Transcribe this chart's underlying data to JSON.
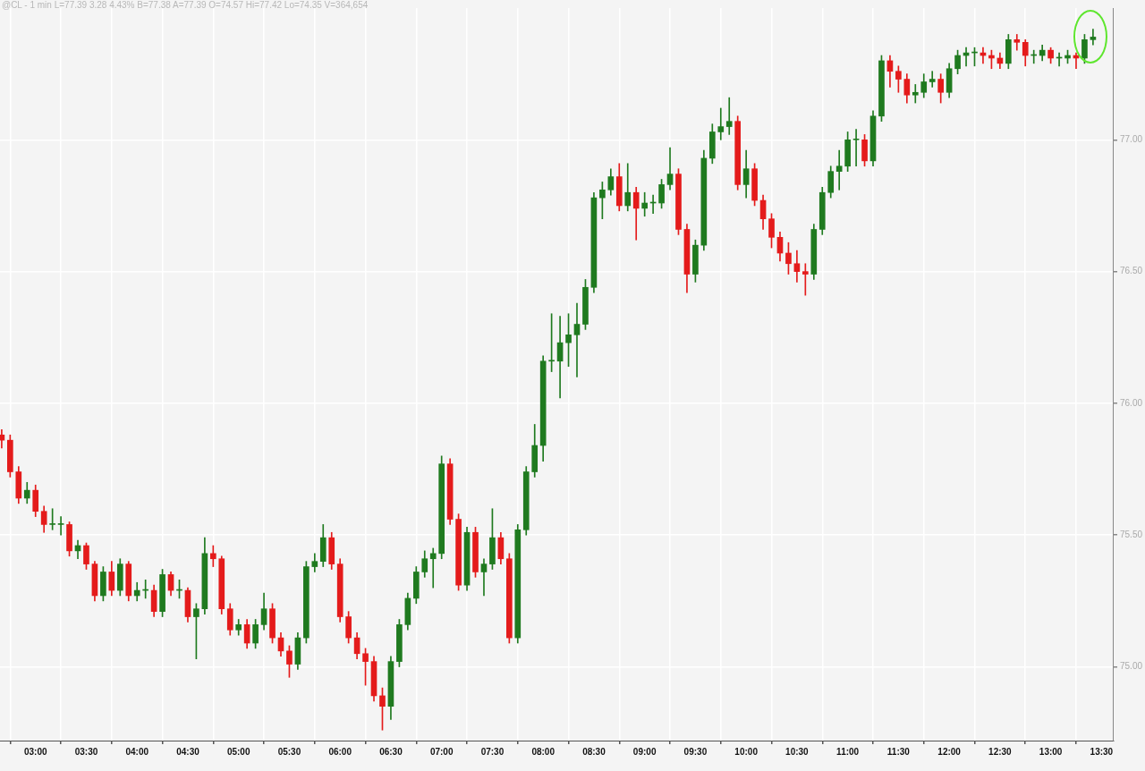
{
  "chart_data": {
    "type": "candlestick",
    "title": "@CL - 1 min L=77.39 3.28 4.43% B=77.38 A=77.39 O=74.57 Hi=77.42 Lo=74.35 V=364,654",
    "x": [
      2.6667,
      2.75,
      2.8333,
      2.9167,
      3,
      3.0833,
      3.1667,
      3.25,
      3.3333,
      3.4167,
      3.5,
      3.5833,
      3.6667,
      3.75,
      3.8333,
      3.9167,
      4,
      4.0833,
      4.1667,
      4.25,
      4.3333,
      4.4167,
      4.5,
      4.5833,
      4.6667,
      4.75,
      4.8333,
      4.9167,
      5,
      5.0833,
      5.1667,
      5.25,
      5.3333,
      5.4167,
      5.5,
      5.5833,
      5.6667,
      5.75,
      5.8333,
      5.9167,
      6,
      6.0833,
      6.1667,
      6.25,
      6.3333,
      6.4167,
      6.5,
      6.5833,
      6.6667,
      6.75,
      6.8333,
      6.9167,
      7,
      7.0833,
      7.1667,
      7.25,
      7.3333,
      7.4167,
      7.5,
      7.5833,
      7.6667,
      7.75,
      7.8333,
      7.9167,
      8,
      8.0833,
      8.1667,
      8.25,
      8.3333,
      8.4167,
      8.5,
      8.5833,
      8.6667,
      8.75,
      8.8333,
      8.9167,
      9,
      9.0833,
      9.1667,
      9.25,
      9.3333,
      9.4167,
      9.5,
      9.5833,
      9.6667,
      9.75,
      9.8333,
      9.9167,
      10,
      10.0833,
      10.1667,
      10.25,
      10.3333,
      10.4167,
      10.5,
      10.5833,
      10.6667,
      10.75,
      10.8333,
      10.9167,
      11,
      11.0833,
      11.1667,
      11.25,
      11.3333,
      11.4167,
      11.5,
      11.5833,
      11.6667,
      11.75,
      11.8333,
      11.9167,
      12,
      12.0833,
      12.1667,
      12.25,
      12.3333,
      12.4167,
      12.5,
      12.5833,
      12.6667,
      12.75,
      12.8333,
      12.9167,
      13,
      13.0833,
      13.1667,
      13.25,
      13.3333,
      13.4167
    ],
    "ohlc": [
      [
        75.88,
        75.9,
        75.83,
        75.86
      ],
      [
        75.86,
        75.88,
        75.72,
        75.74
      ],
      [
        75.74,
        75.76,
        75.62,
        75.64
      ],
      [
        75.64,
        75.7,
        75.62,
        75.67
      ],
      [
        75.67,
        75.69,
        75.57,
        75.59
      ],
      [
        75.59,
        75.61,
        75.51,
        75.54
      ],
      [
        75.54,
        75.6,
        75.52,
        75.54
      ],
      [
        75.54,
        75.57,
        75.5,
        75.54
      ],
      [
        75.54,
        75.55,
        75.42,
        75.44
      ],
      [
        75.44,
        75.48,
        75.41,
        75.46
      ],
      [
        75.46,
        75.47,
        75.37,
        75.39
      ],
      [
        75.39,
        75.4,
        75.25,
        75.27
      ],
      [
        75.27,
        75.38,
        75.25,
        75.36
      ],
      [
        75.36,
        75.4,
        75.27,
        75.29
      ],
      [
        75.29,
        75.41,
        75.27,
        75.39
      ],
      [
        75.39,
        75.4,
        75.25,
        75.27
      ],
      [
        75.27,
        75.32,
        75.25,
        75.29
      ],
      [
        75.29,
        75.33,
        75.26,
        75.29
      ],
      [
        75.29,
        75.31,
        75.19,
        75.21
      ],
      [
        75.21,
        75.37,
        75.19,
        75.35
      ],
      [
        75.35,
        75.36,
        75.27,
        75.29
      ],
      [
        75.29,
        75.33,
        75.26,
        75.29
      ],
      [
        75.29,
        75.3,
        75.17,
        75.19
      ],
      [
        75.19,
        75.24,
        75.03,
        75.22
      ],
      [
        75.22,
        75.49,
        75.2,
        75.43
      ],
      [
        75.43,
        75.46,
        75.38,
        75.41
      ],
      [
        75.41,
        75.42,
        75.2,
        75.22
      ],
      [
        75.22,
        75.24,
        75.12,
        75.14
      ],
      [
        75.14,
        75.18,
        75.12,
        75.16
      ],
      [
        75.16,
        75.18,
        75.07,
        75.09
      ],
      [
        75.09,
        75.18,
        75.07,
        75.16
      ],
      [
        75.16,
        75.28,
        75.14,
        75.22
      ],
      [
        75.22,
        75.24,
        75.09,
        75.11
      ],
      [
        75.11,
        75.13,
        75.04,
        75.06
      ],
      [
        75.06,
        75.08,
        74.96,
        75.01
      ],
      [
        75.01,
        75.13,
        74.99,
        75.11
      ],
      [
        75.11,
        75.4,
        75.09,
        75.38
      ],
      [
        75.38,
        75.43,
        75.36,
        75.4
      ],
      [
        75.4,
        75.54,
        75.38,
        75.49
      ],
      [
        75.49,
        75.51,
        75.37,
        75.39
      ],
      [
        75.39,
        75.41,
        75.17,
        75.19
      ],
      [
        75.19,
        75.21,
        75.09,
        75.11
      ],
      [
        75.11,
        75.13,
        75.03,
        75.05
      ],
      [
        75.05,
        75.07,
        74.93,
        75.02
      ],
      [
        75.02,
        75.04,
        74.87,
        74.89
      ],
      [
        74.89,
        74.92,
        74.76,
        74.85
      ],
      [
        74.85,
        75.04,
        74.8,
        75.02
      ],
      [
        75.02,
        75.18,
        75.0,
        75.16
      ],
      [
        75.16,
        75.28,
        75.14,
        75.26
      ],
      [
        75.26,
        75.38,
        75.24,
        75.36
      ],
      [
        75.36,
        75.44,
        75.34,
        75.41
      ],
      [
        75.41,
        75.45,
        75.3,
        75.43
      ],
      [
        75.43,
        75.8,
        75.41,
        75.77
      ],
      [
        75.77,
        75.79,
        75.54,
        75.56
      ],
      [
        75.56,
        75.58,
        75.29,
        75.31
      ],
      [
        75.31,
        75.53,
        75.29,
        75.51
      ],
      [
        75.51,
        75.53,
        75.34,
        75.36
      ],
      [
        75.36,
        75.41,
        75.27,
        75.39
      ],
      [
        75.39,
        75.6,
        75.37,
        75.49
      ],
      [
        75.49,
        75.51,
        75.39,
        75.41
      ],
      [
        75.41,
        75.43,
        75.09,
        75.11
      ],
      [
        75.11,
        75.54,
        75.09,
        75.52
      ],
      [
        75.52,
        75.76,
        75.5,
        75.74
      ],
      [
        75.74,
        75.92,
        75.72,
        75.84
      ],
      [
        75.84,
        76.18,
        75.78,
        76.16
      ],
      [
        76.16,
        76.34,
        76.12,
        76.16
      ],
      [
        76.16,
        76.33,
        76.02,
        76.23
      ],
      [
        76.23,
        76.34,
        76.14,
        76.26
      ],
      [
        76.26,
        76.38,
        76.1,
        76.3
      ],
      [
        76.3,
        76.47,
        76.28,
        76.44
      ],
      [
        76.44,
        76.8,
        76.42,
        76.78
      ],
      [
        76.78,
        76.84,
        76.7,
        76.81
      ],
      [
        76.81,
        76.89,
        76.79,
        76.86
      ],
      [
        76.86,
        76.91,
        76.73,
        76.75
      ],
      [
        76.75,
        76.91,
        76.73,
        76.8
      ],
      [
        76.8,
        76.82,
        76.62,
        76.74
      ],
      [
        76.74,
        76.8,
        76.71,
        76.76
      ],
      [
        76.76,
        76.79,
        76.72,
        76.76
      ],
      [
        76.76,
        76.85,
        76.74,
        76.83
      ],
      [
        76.83,
        76.97,
        76.81,
        76.87
      ],
      [
        76.87,
        76.89,
        76.64,
        76.66
      ],
      [
        76.66,
        76.68,
        76.42,
        76.49
      ],
      [
        76.49,
        76.62,
        76.46,
        76.6
      ],
      [
        76.6,
        76.96,
        76.58,
        76.93
      ],
      [
        76.93,
        77.06,
        76.91,
        77.03
      ],
      [
        77.03,
        77.12,
        77.0,
        77.05
      ],
      [
        77.05,
        77.16,
        77.02,
        77.07
      ],
      [
        77.07,
        77.09,
        76.81,
        76.83
      ],
      [
        76.83,
        76.96,
        76.78,
        76.89
      ],
      [
        76.89,
        76.91,
        76.75,
        76.77
      ],
      [
        76.77,
        76.79,
        76.66,
        76.7
      ],
      [
        76.7,
        76.72,
        76.59,
        76.63
      ],
      [
        76.63,
        76.65,
        76.54,
        76.57
      ],
      [
        76.57,
        76.61,
        76.49,
        76.53
      ],
      [
        76.53,
        76.58,
        76.46,
        76.5
      ],
      [
        76.5,
        76.53,
        76.41,
        76.49
      ],
      [
        76.49,
        76.68,
        76.47,
        76.66
      ],
      [
        76.66,
        76.82,
        76.64,
        76.8
      ],
      [
        76.8,
        76.9,
        76.78,
        76.88
      ],
      [
        76.88,
        76.96,
        76.81,
        76.9
      ],
      [
        76.9,
        77.03,
        76.88,
        77.0
      ],
      [
        77.0,
        77.04,
        76.9,
        77.0
      ],
      [
        77.0,
        77.02,
        76.9,
        76.92
      ],
      [
        76.92,
        77.11,
        76.9,
        77.09
      ],
      [
        77.09,
        77.32,
        77.07,
        77.3
      ],
      [
        77.3,
        77.32,
        77.2,
        77.26
      ],
      [
        77.26,
        77.28,
        77.18,
        77.23
      ],
      [
        77.23,
        77.25,
        77.14,
        77.17
      ],
      [
        77.17,
        77.21,
        77.14,
        77.18
      ],
      [
        77.18,
        77.25,
        77.16,
        77.22
      ],
      [
        77.22,
        77.26,
        77.2,
        77.23
      ],
      [
        77.23,
        77.25,
        77.14,
        77.18
      ],
      [
        77.18,
        77.29,
        77.16,
        77.27
      ],
      [
        77.27,
        77.34,
        77.25,
        77.32
      ],
      [
        77.32,
        77.35,
        77.28,
        77.33
      ],
      [
        77.33,
        77.35,
        77.28,
        77.33
      ],
      [
        77.33,
        77.35,
        77.29,
        77.32
      ],
      [
        77.32,
        77.34,
        77.27,
        77.31
      ],
      [
        77.31,
        77.33,
        77.27,
        77.29
      ],
      [
        77.29,
        77.4,
        77.27,
        77.38
      ],
      [
        77.38,
        77.4,
        77.34,
        77.37
      ],
      [
        77.37,
        77.38,
        77.28,
        77.32
      ],
      [
        77.32,
        77.34,
        77.29,
        77.32
      ],
      [
        77.32,
        77.36,
        77.3,
        77.34
      ],
      [
        77.34,
        77.35,
        77.29,
        77.31
      ],
      [
        77.31,
        77.33,
        77.28,
        77.31
      ],
      [
        77.31,
        77.34,
        77.29,
        77.32
      ],
      [
        77.32,
        77.33,
        77.27,
        77.31
      ],
      [
        77.31,
        77.4,
        77.29,
        77.38
      ],
      [
        77.38,
        77.42,
        77.36,
        77.39
      ]
    ],
    "colors": [
      "#e41b1b",
      "#e41b1b",
      "#e41b1b",
      "#1f7a1f",
      "#e41b1b",
      "#e41b1b",
      "#1f7a1f",
      "#1f7a1f",
      "#e41b1b",
      "#1f7a1f",
      "#e41b1b",
      "#e41b1b",
      "#1f7a1f",
      "#e41b1b",
      "#1f7a1f",
      "#e41b1b",
      "#1f7a1f",
      "#1f7a1f",
      "#e41b1b",
      "#1f7a1f",
      "#e41b1b",
      "#1f7a1f",
      "#e41b1b",
      "#1f7a1f",
      "#1f7a1f",
      "#e41b1b",
      "#e41b1b",
      "#e41b1b",
      "#1f7a1f",
      "#e41b1b",
      "#1f7a1f",
      "#1f7a1f",
      "#e41b1b",
      "#e41b1b",
      "#e41b1b",
      "#1f7a1f",
      "#1f7a1f",
      "#1f7a1f",
      "#1f7a1f",
      "#e41b1b",
      "#e41b1b",
      "#e41b1b",
      "#e41b1b",
      "#e41b1b",
      "#e41b1b",
      "#e41b1b",
      "#1f7a1f",
      "#1f7a1f",
      "#1f7a1f",
      "#1f7a1f",
      "#1f7a1f",
      "#1f7a1f",
      "#1f7a1f",
      "#e41b1b",
      "#e41b1b",
      "#1f7a1f",
      "#e41b1b",
      "#1f7a1f",
      "#1f7a1f",
      "#e41b1b",
      "#e41b1b",
      "#1f7a1f",
      "#1f7a1f",
      "#1f7a1f",
      "#1f7a1f",
      "#1f7a1f",
      "#1f7a1f",
      "#1f7a1f",
      "#1f7a1f",
      "#1f7a1f",
      "#1f7a1f",
      "#1f7a1f",
      "#1f7a1f",
      "#e41b1b",
      "#1f7a1f",
      "#e41b1b",
      "#1f7a1f",
      "#1f7a1f",
      "#1f7a1f",
      "#1f7a1f",
      "#e41b1b",
      "#e41b1b",
      "#1f7a1f",
      "#1f7a1f",
      "#1f7a1f",
      "#1f7a1f",
      "#1f7a1f",
      "#e41b1b",
      "#1f7a1f",
      "#e41b1b",
      "#e41b1b",
      "#e41b1b",
      "#e41b1b",
      "#e41b1b",
      "#e41b1b",
      "#e41b1b",
      "#1f7a1f",
      "#1f7a1f",
      "#1f7a1f",
      "#1f7a1f",
      "#1f7a1f",
      "#1f7a1f",
      "#e41b1b",
      "#1f7a1f",
      "#1f7a1f",
      "#e41b1b",
      "#e41b1b",
      "#e41b1b",
      "#1f7a1f",
      "#1f7a1f",
      "#1f7a1f",
      "#e41b1b",
      "#1f7a1f",
      "#1f7a1f",
      "#1f7a1f",
      "#1f7a1f",
      "#e41b1b",
      "#e41b1b",
      "#e41b1b",
      "#1f7a1f",
      "#e41b1b",
      "#e41b1b",
      "#1f7a1f",
      "#1f7a1f",
      "#e41b1b",
      "#1f7a1f",
      "#1f7a1f",
      "#e41b1b",
      "#1f7a1f",
      "#1f7a1f"
    ],
    "xlim": [
      2.65,
      13.62
    ],
    "xticks": [
      {
        "value": 3,
        "label": "03:00"
      },
      {
        "value": 3.5,
        "label": "03:30"
      },
      {
        "value": 4,
        "label": "04:00"
      },
      {
        "value": 4.5,
        "label": "04:30"
      },
      {
        "value": 5,
        "label": "05:00"
      },
      {
        "value": 5.5,
        "label": "05:30"
      },
      {
        "value": 6,
        "label": "06:00"
      },
      {
        "value": 6.5,
        "label": "06:30"
      },
      {
        "value": 7,
        "label": "07:00"
      },
      {
        "value": 7.5,
        "label": "07:30"
      },
      {
        "value": 8,
        "label": "08:00"
      },
      {
        "value": 8.5,
        "label": "08:30"
      },
      {
        "value": 9,
        "label": "09:00"
      },
      {
        "value": 9.5,
        "label": "09:30"
      },
      {
        "value": 10,
        "label": "10:00"
      },
      {
        "value": 10.5,
        "label": "10:30"
      },
      {
        "value": 11,
        "label": "11:00"
      },
      {
        "value": 11.5,
        "label": "11:30"
      },
      {
        "value": 12,
        "label": "12:00"
      },
      {
        "value": 12.5,
        "label": "12:30"
      },
      {
        "value": 13,
        "label": "13:00"
      },
      {
        "value": 13.5,
        "label": "13:30"
      }
    ],
    "ylim": [
      74.72,
      77.5
    ],
    "yticks": [
      {
        "value": 75,
        "label": "75.00"
      },
      {
        "value": 75.5,
        "label": "75.50"
      },
      {
        "value": 76,
        "label": "76.00"
      },
      {
        "value": 76.5,
        "label": "76.50"
      },
      {
        "value": 77,
        "label": "77.00"
      }
    ],
    "grid": true
  }
}
